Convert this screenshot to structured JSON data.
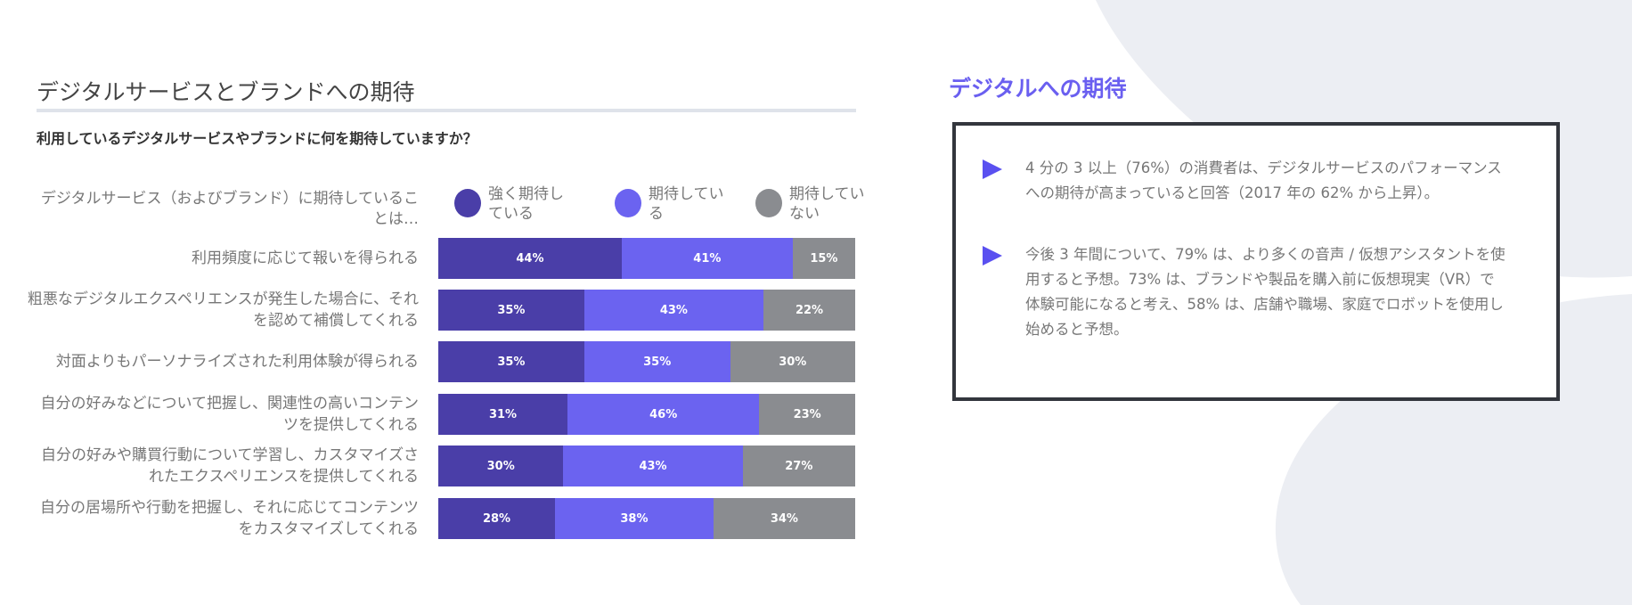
{
  "left_panel": {
    "title": "デジタルサービスとブランドへの期待",
    "subtitle": "利用しているデジタルサービスやブランドに何を期待していますか？"
  },
  "chart_data": {
    "type": "bar",
    "orientation": "horizontal",
    "stacked": true,
    "category_header": "デジタルサービス（およびブランド）に期待していることは…",
    "categories": [
      "利用頻度に応じて報いを得られる",
      "粗悪なデジタルエクスペリエンスが発生した場合に、それを認めて補償してくれる",
      "対面よりもパーソナライズされた利用体験が得られる",
      "自分の好みなどについて把握し、関連性の高いコンテンツを提供してくれる",
      "自分の好みや購買行動について学習し、カスタマイズされたエクスペリエンスを提供してくれる",
      "自分の居場所や行動を把握し、それに応じてコンテンツをカスタマイズしてくれる"
    ],
    "series": [
      {
        "name": "強く期待している",
        "color": "#4a3ea8",
        "values": [
          44,
          35,
          35,
          31,
          30,
          28
        ]
      },
      {
        "name": "期待している",
        "color": "#6b63f0",
        "values": [
          41,
          43,
          35,
          46,
          43,
          38
        ]
      },
      {
        "name": "期待していない",
        "color": "#8a8c90",
        "values": [
          15,
          22,
          30,
          23,
          27,
          34
        ]
      }
    ],
    "value_suffix": "%",
    "legend": "top",
    "grid": false
  },
  "right_panel": {
    "title": "デジタルへの期待",
    "accent": "#6a5ff0",
    "bullets": [
      {
        "icon": "triangle-bullet-icon",
        "text": "4 分の 3 以上（76%）の消費者は、デジタルサービスのパフォーマンスへの期待が高まっていると回答（2017 年の 62% から上昇）。"
      },
      {
        "icon": "triangle-bullet-icon",
        "text": "今後 3 年間について、79% は、より多くの音声 / 仮想アシスタントを使用すると予想。73% は、ブランドや製品を購入前に仮想現実（VR）で体験可能になると考え、58% は、店舗や職場、家庭でロボットを使用し始めると予想。"
      }
    ]
  }
}
